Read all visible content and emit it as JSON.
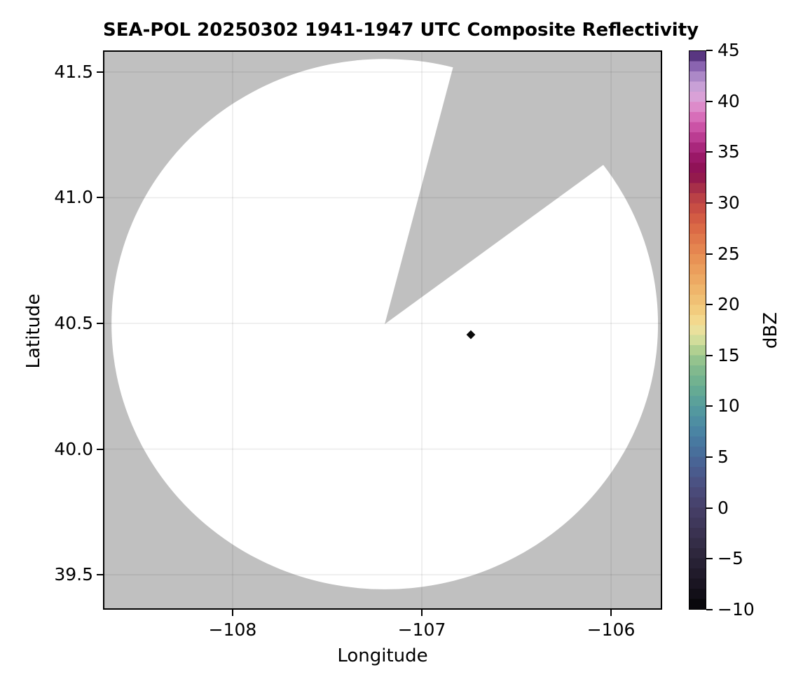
{
  "title": "SEA-POL 20250302 1941-1947 UTC Composite Reflectivity",
  "axes": {
    "xlabel": "Longitude",
    "ylabel": "Latitude",
    "xlim": [
      -108.685,
      -105.73
    ],
    "ylim": [
      39.361,
      41.586
    ],
    "x_ticks": [
      -108,
      -107,
      -106
    ],
    "x_tick_labels": [
      "−108",
      "−107",
      "−106"
    ],
    "y_ticks": [
      41.5,
      41.0,
      40.5,
      40.0,
      39.5
    ],
    "y_tick_labels": [
      "41.5",
      "41.0",
      "40.5",
      "40.0",
      "39.5"
    ],
    "grid": true
  },
  "colorbar": {
    "label": "dBZ",
    "range": [
      -10,
      45
    ],
    "step_dbz": 1,
    "ticks": [
      45,
      40,
      35,
      30,
      25,
      20,
      15,
      10,
      5,
      0,
      -5,
      -10
    ],
    "tick_labels": [
      "45",
      "40",
      "35",
      "30",
      "25",
      "20",
      "15",
      "10",
      "5",
      "0",
      "−5",
      "−10"
    ]
  },
  "colors": {
    "nodata_gray": "#c0c0c0",
    "coverage_white": "#ffffff",
    "echo_color": "#0a0a0a",
    "gridline": "rgba(0,0,0,0.08)",
    "spine": "#000000"
  },
  "chart_data": {
    "type": "heatmap",
    "title": "SEA-POL 20250302 1941-1947 UTC Composite Reflectivity",
    "xlabel": "Longitude",
    "ylabel": "Latitude",
    "xlim": [
      -108.685,
      -105.73
    ],
    "ylim": [
      39.361,
      41.586
    ],
    "grid": true,
    "legend": "colorbar-right",
    "colorbar_label": "dBZ",
    "colorbar_range": [
      -10,
      45
    ],
    "radar": {
      "name": "SEA-POL",
      "center_lon": -107.196,
      "center_lat": 40.497,
      "coverage_radius_lon_deg": 1.444,
      "coverage_radius_lat_deg": 1.055,
      "blanked_sector_azimuth_deg_from_north": [
        14,
        54
      ],
      "blanked_sector_edge_ends": [
        {
          "lon": -106.834,
          "lat": 41.522
        },
        {
          "lon": -106.053,
          "lat": 41.124
        }
      ]
    },
    "echoes": [
      {
        "lon": -106.741,
        "lat": 40.455,
        "value_dbz": -8
      }
    ],
    "colormap_anchors": [
      [
        -10,
        "#050505"
      ],
      [
        -9,
        "#0d0b13"
      ],
      [
        -8,
        "#16121d"
      ],
      [
        -6,
        "#241e2f"
      ],
      [
        -4,
        "#312a42"
      ],
      [
        -2,
        "#3d3556"
      ],
      [
        0,
        "#464069"
      ],
      [
        2,
        "#4b4d7e"
      ],
      [
        4,
        "#4a5f92"
      ],
      [
        6,
        "#47749e"
      ],
      [
        8,
        "#4b89a4"
      ],
      [
        10,
        "#569d9d"
      ],
      [
        12,
        "#6aae91"
      ],
      [
        14,
        "#88bd8d"
      ],
      [
        15,
        "#9fc88e"
      ],
      [
        16,
        "#c2d794"
      ],
      [
        17,
        "#e2e3a2"
      ],
      [
        18,
        "#f2dd96"
      ],
      [
        19,
        "#f3d284"
      ],
      [
        20,
        "#f1c678"
      ],
      [
        22,
        "#eeaf66"
      ],
      [
        24,
        "#ea9858"
      ],
      [
        26,
        "#e37f4d"
      ],
      [
        28,
        "#d86344"
      ],
      [
        30,
        "#c24744"
      ],
      [
        31,
        "#b23a47"
      ],
      [
        32,
        "#9c234a"
      ],
      [
        33,
        "#8c1150"
      ],
      [
        34,
        "#93125e"
      ],
      [
        35,
        "#a01d70"
      ],
      [
        36,
        "#b23188"
      ],
      [
        37,
        "#c4469c"
      ],
      [
        38,
        "#d25fb0"
      ],
      [
        39,
        "#db7cc2"
      ],
      [
        40,
        "#de9ad2"
      ],
      [
        41,
        "#d4a8db"
      ],
      [
        42,
        "#bb98d0"
      ],
      [
        43,
        "#9c77bd"
      ],
      [
        44,
        "#7850a3"
      ],
      [
        45,
        "#3a1c5e"
      ]
    ]
  }
}
